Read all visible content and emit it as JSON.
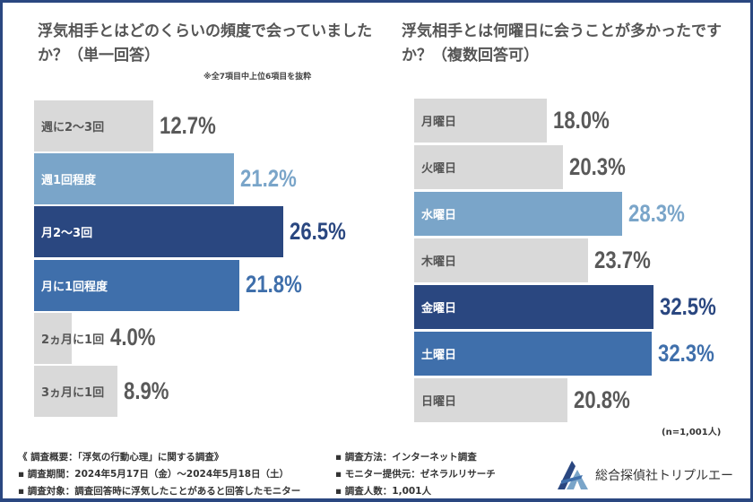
{
  "colors": {
    "gray": "#d9d9d9",
    "light_blue": "#7aa5c9",
    "navy": "#2a4780",
    "mid_blue": "#3f6fab",
    "text_gray": "#595959"
  },
  "chart_data": [
    {
      "type": "bar",
      "orientation": "horizontal",
      "title": "浮気相手とはどのくらいの頻度で会っていましたか？（単一回答）",
      "note": "※全7項目中上位6項目を抜粋",
      "categories": [
        "週に2〜3回",
        "週1回程度",
        "月2〜3回",
        "月に1回程度",
        "2ヵ月に1回",
        "3ヵ月に1回"
      ],
      "values": [
        12.7,
        21.2,
        26.5,
        21.8,
        4.0,
        8.9
      ],
      "labels": [
        "12.7%",
        "21.2%",
        "26.5%",
        "21.8%",
        "4.0%",
        "8.9%"
      ],
      "bar_colors": [
        "gray",
        "light_blue",
        "navy",
        "mid_blue",
        "gray",
        "gray"
      ]
    },
    {
      "type": "bar",
      "orientation": "horizontal",
      "title": "浮気相手とは何曜日に会うことが多かったですか？（複数回答可）",
      "categories": [
        "月曜日",
        "火曜日",
        "水曜日",
        "木曜日",
        "金曜日",
        "土曜日",
        "日曜日"
      ],
      "values": [
        18.0,
        20.3,
        28.3,
        23.7,
        32.5,
        32.3,
        20.8
      ],
      "labels": [
        "18.0%",
        "20.3%",
        "28.3%",
        "23.7%",
        "32.5%",
        "32.3%",
        "20.8%"
      ],
      "bar_colors": [
        "gray",
        "gray",
        "light_blue",
        "gray",
        "navy",
        "mid_blue",
        "gray"
      ]
    }
  ],
  "sample_note": "(n=1,001人)",
  "footer": {
    "summary": "《 調査概要：「浮気の行動心理」に関する調査》",
    "period": "▪ 調査期間：2024年5月17日（金）〜2024年5月18日（土）",
    "target": "▪ 調査対象：調査回答時に浮気したことがあると回答したモニター",
    "method": "▪ 調査方法：インターネット調査",
    "provider": "▪ モニター提供元：ゼネラルリサーチ",
    "count": "▪ 調査人数：1,001人"
  },
  "logo": "総合探偵社トリプルエー"
}
